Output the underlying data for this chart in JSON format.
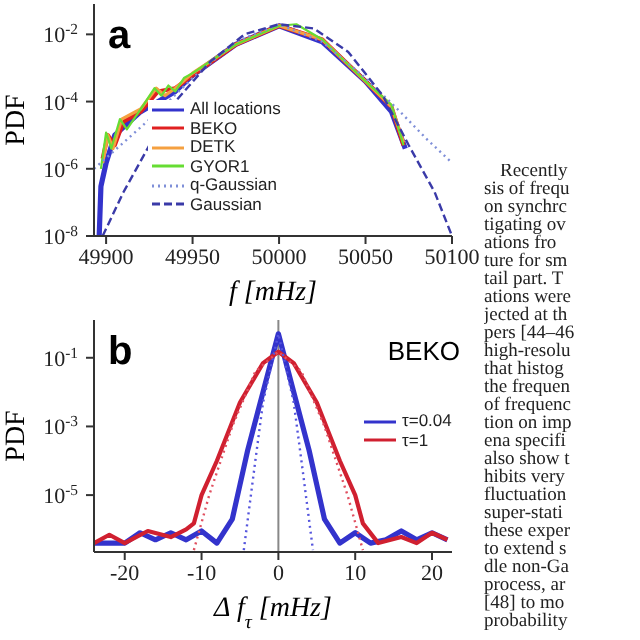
{
  "chart_data": [
    {
      "type": "line",
      "annotations": [
        "a"
      ],
      "xlabel": "f [mHz]",
      "ylabel": "PDF",
      "log": "y",
      "xlim": [
        49893,
        50100
      ],
      "xticks": [
        49900,
        49950,
        50000,
        50050,
        50100
      ],
      "ylim": [
        1e-08,
        0.08
      ],
      "yticks": [
        {
          "value": 1e-08,
          "label": "10$^{-8}$"
        },
        {
          "value": 1e-06,
          "label": "10$^{-6}$"
        },
        {
          "value": 0.0001,
          "label": "10$^{-4}$"
        },
        {
          "value": 0.01,
          "label": "10$^{-2}$"
        }
      ],
      "legend": "bottom",
      "grid": false,
      "series": [
        {
          "name": "All locations",
          "color": "#3333cc",
          "x": [
            49896,
            49897,
            49900,
            49905,
            49920,
            49940,
            49950,
            49975,
            50000,
            50025,
            50050,
            50065,
            50073
          ],
          "values": [
            1e-08,
            3e-07,
            1.5e-06,
            1e-05,
            5e-05,
            0.0002,
            0.0006,
            0.005,
            0.018,
            0.006,
            0.0004,
            5e-05,
            4e-06
          ]
        },
        {
          "name": "BEKO",
          "color": "#e02020",
          "x": [
            49898,
            49901,
            49905,
            49910,
            49920,
            49930,
            49940,
            49950,
            49975,
            50000,
            50025,
            50050,
            50065,
            50072
          ],
          "values": [
            2e-06,
            1e-05,
            5e-06,
            2.5e-05,
            5e-05,
            0.0002,
            0.00025,
            0.0006,
            0.005,
            0.018,
            0.007,
            0.0004,
            7e-05,
            5e-06
          ]
        },
        {
          "name": "DETK",
          "color": "#f5a040",
          "x": [
            49898,
            49901,
            49904,
            49909,
            49920,
            49929,
            49934,
            49940,
            49950,
            49975,
            50000,
            50025,
            50050,
            50065,
            50072
          ],
          "values": [
            1.5e-06,
            1e-05,
            4e-06,
            3e-05,
            6e-05,
            0.00025,
            0.00015,
            0.00025,
            0.0007,
            0.005,
            0.018,
            0.007,
            0.0004,
            7e-05,
            6e-06
          ]
        },
        {
          "name": "GYOR1",
          "color": "#66dd33",
          "x": [
            49897,
            49900,
            49903,
            49908,
            49912,
            49920,
            49928,
            49932,
            49936,
            49940,
            49945,
            49950,
            49975,
            50000,
            50010,
            50025,
            50050,
            50065,
            50072
          ],
          "values": [
            1e-06,
            1.2e-05,
            4e-06,
            3e-05,
            1.5e-05,
            6e-05,
            0.00025,
            0.00015,
            0.0003,
            0.0002,
            0.0005,
            0.0007,
            0.005,
            0.018,
            0.02,
            0.007,
            0.0004,
            8e-05,
            5e-06
          ]
        },
        {
          "name": "q-Gaussian",
          "color": "#7f8fd8",
          "line_style": "dotted",
          "x": [
            49893,
            49910,
            49930,
            49950,
            49975,
            50000,
            50025,
            50050,
            50070,
            50085,
            50100
          ],
          "values": [
            1e-06,
            6e-06,
            5e-05,
            0.0005,
            0.006,
            0.02,
            0.006,
            0.0005,
            5e-05,
            8e-06,
            1.5e-06
          ]
        },
        {
          "name": "Gaussian",
          "color": "#3a3aa8",
          "line_style": "dashed",
          "x": [
            49898,
            49910,
            49925,
            49940,
            49960,
            49980,
            50000,
            50020,
            50040,
            50060,
            50075,
            50090,
            50100
          ],
          "values": [
            1e-08,
            2e-07,
            5e-06,
            0.0001,
            0.0015,
            0.01,
            0.02,
            0.015,
            0.003,
            0.00015,
            5e-06,
            2e-07,
            1e-08
          ]
        }
      ]
    },
    {
      "type": "line",
      "annotations": [
        "b",
        "BEKO"
      ],
      "xlabel": "Δ f$_{τ}$ [mHz]",
      "ylabel": "PDF",
      "log": "y",
      "xlim": [
        -24,
        22.6
      ],
      "xticks": [
        -20,
        -10,
        0,
        10,
        20
      ],
      "ylim": [
        2.2e-07,
        1.26
      ],
      "yticks": [
        {
          "value": 1e-05,
          "label": "10$^{-5}$"
        },
        {
          "value": 0.001,
          "label": "10$^{-3}$"
        },
        {
          "value": 0.1,
          "label": "10$^{-1}$"
        }
      ],
      "legend": "right",
      "grid": false,
      "ref_lines": [
        {
          "axis": "x",
          "value": 0,
          "color": "#888888"
        }
      ],
      "series": [
        {
          "name": "τ=0.04",
          "color": "#3333cc",
          "x": [
            -24,
            -20,
            -18,
            -16,
            -14,
            -12,
            -10,
            -8,
            -6,
            -5,
            -4,
            -2,
            0,
            2,
            4,
            5,
            6,
            8,
            10,
            12,
            14,
            16,
            18,
            20,
            22
          ],
          "values": [
            4e-07,
            4e-07,
            8e-07,
            5e-07,
            8e-07,
            5e-07,
            9e-07,
            4e-07,
            2e-06,
            2e-05,
            0.0002,
            0.01,
            0.5,
            0.01,
            0.0002,
            2e-05,
            2e-06,
            4e-07,
            8e-07,
            4e-07,
            5e-07,
            9e-07,
            5e-07,
            8e-07,
            5e-07
          ]
        },
        {
          "name": "τ=1",
          "color": "#d02030",
          "x": [
            -24,
            -22,
            -20,
            -17,
            -14,
            -12,
            -11,
            -10,
            -8,
            -5,
            -2,
            0,
            2,
            5,
            8,
            10,
            11,
            13,
            16,
            18,
            20,
            22
          ],
          "values": [
            4e-07,
            7e-07,
            4e-07,
            9e-07,
            6e-07,
            1e-06,
            1.5e-06,
            1e-05,
            0.0001,
            0.005,
            0.07,
            0.15,
            0.07,
            0.005,
            0.0001,
            1e-05,
            1.5e-06,
            4e-07,
            6e-07,
            4e-07,
            8e-07,
            5e-07
          ]
        },
        {
          "color": "#5555dd",
          "line_style": "dotted",
          "x": [
            -4.5,
            -3,
            -2,
            0,
            2,
            3,
            4.5
          ],
          "values": [
            2.5e-07,
            0.0001,
            0.005,
            0.5,
            0.005,
            0.0001,
            2.5e-07
          ]
        },
        {
          "color": "#e05060",
          "line_style": "dotted",
          "x": [
            -11,
            -9,
            -6,
            -3,
            0,
            3,
            6,
            9,
            11
          ],
          "values": [
            2.5e-07,
            1e-05,
            0.001,
            0.04,
            0.15,
            0.04,
            0.001,
            1e-05,
            2.5e-07
          ]
        }
      ]
    },
    {
      "type": "other",
      "annotations": [
        "Recently",
        "sis of frequ",
        "on synchrc",
        "tigating ov",
        "ations fro",
        "ture for sm",
        "tail part. T",
        "ations were",
        "jected at th",
        "pers [44–46",
        "high-resolu",
        "that histog",
        "the frequen",
        "of frequenc",
        "tion on imp",
        "ena specifi",
        "also show t",
        "hibits very",
        "fluctuation",
        "super-stati",
        "these exper",
        "to extend s",
        "dle non-Ga",
        "process, ar",
        "[48] to mo",
        "probability"
      ]
    }
  ]
}
